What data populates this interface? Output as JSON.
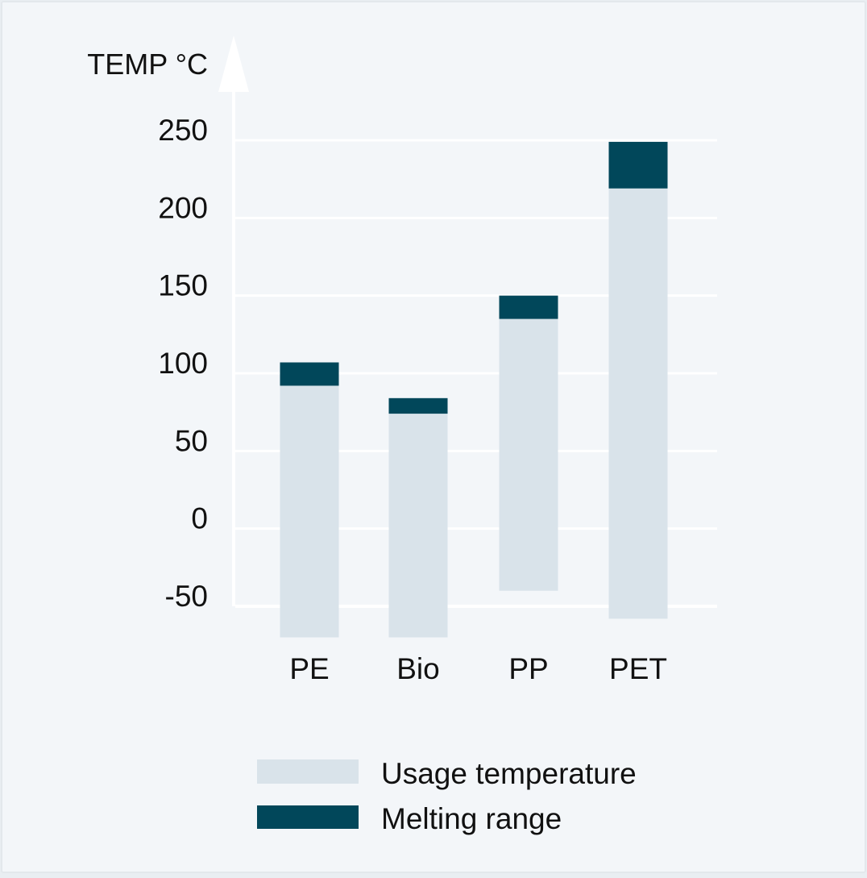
{
  "chart_data": {
    "type": "bar",
    "axis_title": "TEMP °C",
    "categories": [
      "PE",
      "Bio",
      "PP",
      "PET"
    ],
    "ylim": [
      -50,
      250
    ],
    "y_ticks": [
      250,
      200,
      150,
      100,
      50,
      0,
      -50
    ],
    "y_tick_labels": [
      "250",
      "200",
      "150",
      "100",
      "50",
      "0",
      "-50"
    ],
    "grid": true,
    "legend_position": "bottom-center",
    "series": [
      {
        "name": "Usage temperature",
        "color": "#d9e3ea",
        "ranges": [
          [
            -70,
            92
          ],
          [
            -70,
            74
          ],
          [
            -40,
            135
          ],
          [
            -58,
            219
          ]
        ]
      },
      {
        "name": "Melting range",
        "color": "#01475a",
        "ranges": [
          [
            92,
            107
          ],
          [
            74,
            84
          ],
          [
            135,
            150
          ],
          [
            219,
            249
          ]
        ]
      }
    ]
  },
  "colors": {
    "background": "#f3f6f9",
    "border": "#e3e8ec",
    "gridline": "#ffffff",
    "axis": "#ffffff"
  }
}
